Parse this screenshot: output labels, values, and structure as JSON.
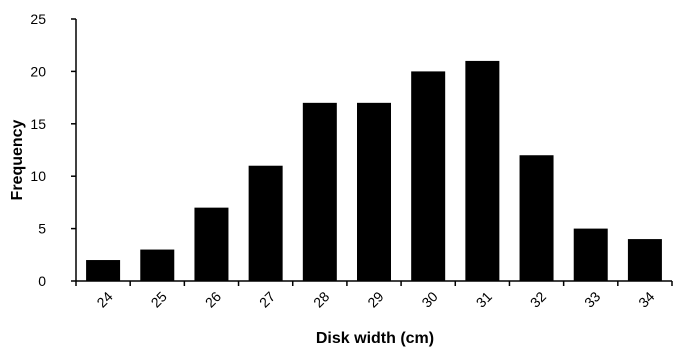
{
  "chart_data": {
    "type": "bar",
    "categories": [
      "24",
      "25",
      "26",
      "27",
      "28",
      "29",
      "30",
      "31",
      "32",
      "33",
      "34"
    ],
    "values": [
      2,
      3,
      7,
      11,
      17,
      17,
      20,
      21,
      12,
      5,
      4
    ],
    "xlabel": "Disk width (cm)",
    "ylabel": "Frequency",
    "ylim": [
      0,
      25
    ],
    "yticks": [
      "0",
      "5",
      "10",
      "15",
      "20",
      "25"
    ],
    "grid": false,
    "legend": "none",
    "bar_color": "#000000"
  }
}
